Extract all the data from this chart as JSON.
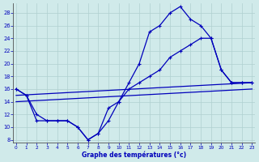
{
  "bg_color": "#d0eaea",
  "line_color": "#0000bb",
  "grid_color": "#b0d0d0",
  "xlabel": "Graphe des températures (°c)",
  "xlim": [
    -0.3,
    23.3
  ],
  "ylim": [
    7.5,
    29.5
  ],
  "xticks": [
    0,
    1,
    2,
    3,
    4,
    5,
    6,
    7,
    8,
    9,
    10,
    11,
    12,
    13,
    14,
    15,
    16,
    17,
    18,
    19,
    20,
    21,
    22,
    23
  ],
  "yticks": [
    8,
    10,
    12,
    14,
    16,
    18,
    20,
    22,
    24,
    26,
    28
  ],
  "curve1_x": [
    0,
    1,
    2,
    3,
    4,
    5,
    6,
    7,
    8,
    9,
    10,
    11,
    12,
    13,
    14,
    15,
    16,
    17,
    18,
    19,
    20,
    21,
    22,
    23
  ],
  "curve1_y": [
    16,
    15,
    11,
    11,
    11,
    11,
    10,
    8,
    9,
    11,
    14,
    17,
    20,
    25,
    26,
    28,
    29,
    27,
    26,
    24,
    19,
    17,
    17,
    17
  ],
  "curve2_x": [
    0,
    1,
    2,
    3,
    4,
    5,
    6,
    7,
    8,
    9,
    10,
    11,
    12,
    13,
    14,
    15,
    16,
    17,
    18,
    19,
    20,
    21,
    22,
    23
  ],
  "curve2_y": [
    16,
    15,
    12,
    11,
    11,
    11,
    10,
    8,
    9,
    13,
    14,
    16,
    17,
    18,
    19,
    21,
    22,
    23,
    24,
    24,
    19,
    17,
    17,
    17
  ],
  "line3_x": [
    0,
    23
  ],
  "line3_y": [
    15,
    17
  ],
  "line4_x": [
    0,
    23
  ],
  "line4_y": [
    14,
    16
  ]
}
